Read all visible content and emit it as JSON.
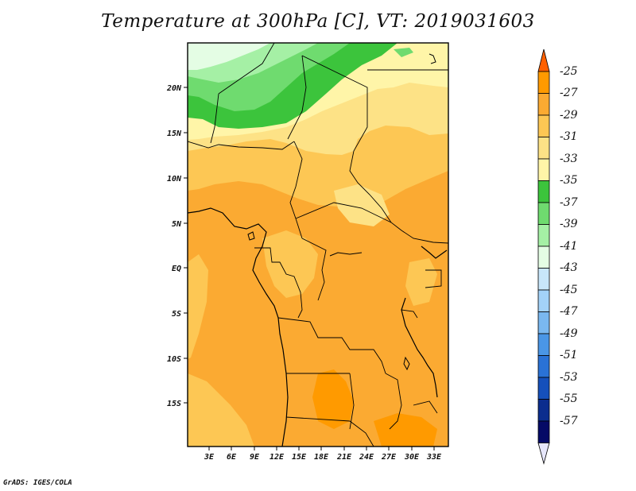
{
  "header": {
    "title": "Temperature at 300hPa [C], VT: 2019031603"
  },
  "footer": {
    "credit": "GrADS: IGES/COLA"
  },
  "map": {
    "y_ticks": [
      "20N",
      "15N",
      "10N",
      "5N",
      "EQ",
      "5S",
      "10S",
      "15S"
    ],
    "x_ticks": [
      "3E",
      "6E",
      "9E",
      "12E",
      "15E",
      "18E",
      "21E",
      "24E",
      "27E",
      "30E",
      "33E"
    ]
  },
  "colorbar": {
    "labels": [
      "-25",
      "-27",
      "-29",
      "-31",
      "-33",
      "-35",
      "-37",
      "-39",
      "-41",
      "-43",
      "-45",
      "-47",
      "-49",
      "-51",
      "-53",
      "-55",
      "-57"
    ],
    "colors": [
      "#ff6000",
      "#ff9a00",
      "#fbaa32",
      "#fdc754",
      "#fde286",
      "#fff5a8",
      "#3cc43c",
      "#6fdb6f",
      "#a5f0a5",
      "#e4fde4",
      "#c8e6fa",
      "#a3d2f8",
      "#7ab8f0",
      "#4a96e6",
      "#2a72d6",
      "#1550bb",
      "#0b2d8e",
      "#050a66",
      "#e6e6fa"
    ]
  }
}
